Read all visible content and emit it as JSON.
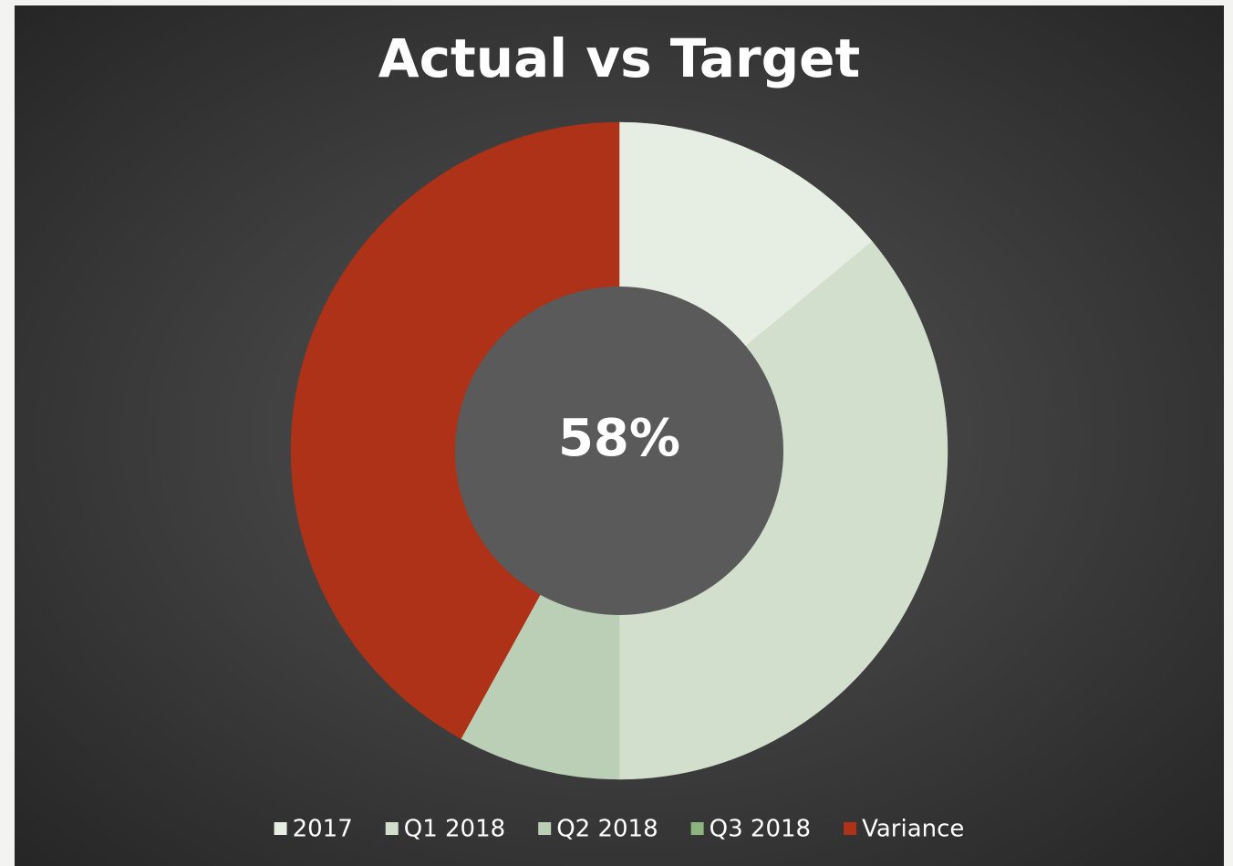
{
  "chart_data": {
    "type": "donut",
    "title": "Actual vs Target",
    "center_label": "58%",
    "categories": [
      "2017",
      "Q1 2018",
      "Q2 2018",
      "Q3 2018",
      "Variance"
    ],
    "values": [
      14,
      36,
      8,
      0,
      42
    ],
    "colors": [
      "#e6ede3",
      "#d1dfcc",
      "#bbcfb6",
      "#8db37f",
      "#ae3217"
    ],
    "legend": "bottom"
  }
}
